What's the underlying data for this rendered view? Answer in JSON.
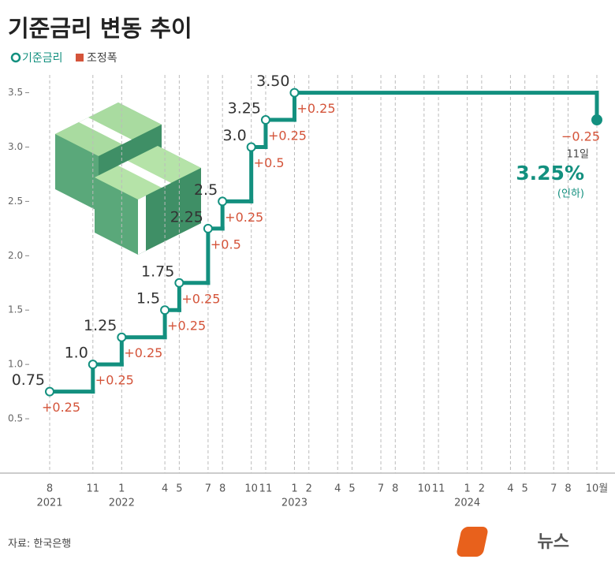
{
  "chart_data": {
    "type": "step",
    "title": "기준금리 변동 추이",
    "x": [
      "2021-08",
      "2021-11",
      "2022-01",
      "2022-04",
      "2022-05",
      "2022-07",
      "2022-08",
      "2022-10",
      "2022-11",
      "2023-01",
      "2024-10"
    ],
    "series": [
      {
        "name": "기준금리",
        "color": "#13907f",
        "values": [
          0.75,
          1.0,
          1.25,
          1.5,
          1.75,
          2.25,
          2.5,
          3.0,
          3.25,
          3.5,
          3.25
        ],
        "value_labels": [
          "0.75",
          "1.0",
          "1.25",
          "1.5",
          "1.75",
          "2.25",
          "2.5",
          "3.0",
          "3.25",
          "3.50",
          "3.25%"
        ]
      },
      {
        "name": "조정폭",
        "color": "#d4543a",
        "values": [
          0.25,
          0.25,
          0.25,
          0.25,
          0.25,
          0.5,
          0.25,
          0.5,
          0.25,
          0.25,
          -0.25
        ],
        "value_labels": [
          "+0.25",
          "+0.25",
          "+0.25",
          "+0.25",
          "+0.25",
          "+0.5",
          "+0.25",
          "+0.5",
          "+0.25",
          "+0.25",
          "−0.25"
        ]
      }
    ],
    "ylim": [
      0,
      3.7
    ],
    "yticks": [
      {
        "value": 0.5,
        "label": "0.5"
      },
      {
        "value": 1,
        "label": "1.0"
      },
      {
        "value": 1.5,
        "label": "1.5"
      },
      {
        "value": 2,
        "label": "2.0"
      },
      {
        "value": 2.5,
        "label": "2.5"
      },
      {
        "value": 3,
        "label": "3.0"
      },
      {
        "value": 3.5,
        "label": "3.5"
      }
    ],
    "xlim": [
      "2021-08",
      "2024-10"
    ],
    "xticks": [
      {
        "value": "2021-08",
        "label": "8"
      },
      {
        "value": "2021-11",
        "label": "11"
      },
      {
        "value": "2022-01",
        "label": "1"
      },
      {
        "value": "2022-04",
        "label": "4"
      },
      {
        "value": "2022-05",
        "label": "5"
      },
      {
        "value": "2022-07",
        "label": "7"
      },
      {
        "value": "2022-08",
        "label": "8"
      },
      {
        "value": "2022-10",
        "label": "10"
      },
      {
        "value": "2022-11",
        "label": "11"
      },
      {
        "value": "2023-01",
        "label": "1"
      },
      {
        "value": "2023-02",
        "label": "2"
      },
      {
        "value": "2023-04",
        "label": "4"
      },
      {
        "value": "2023-05",
        "label": "5"
      },
      {
        "value": "2023-07",
        "label": "7"
      },
      {
        "value": "2023-08",
        "label": "8"
      },
      {
        "value": "2023-10",
        "label": "10"
      },
      {
        "value": "2023-11",
        "label": "11"
      },
      {
        "value": "2024-01",
        "label": "1"
      },
      {
        "value": "2024-02",
        "label": "2"
      },
      {
        "value": "2024-04",
        "label": "4"
      },
      {
        "value": "2024-05",
        "label": "5"
      },
      {
        "value": "2024-07",
        "label": "7"
      },
      {
        "value": "2024-08",
        "label": "8"
      },
      {
        "value": "2024-10",
        "label": "10월"
      }
    ],
    "year_labels": [
      {
        "value": "2021-08",
        "label": "2021"
      },
      {
        "value": "2022-01",
        "label": "2022"
      },
      {
        "value": "2023-01",
        "label": "2023"
      },
      {
        "value": "2024-01",
        "label": "2024"
      }
    ],
    "annotations": [
      "11일",
      "(인하)"
    ],
    "source": "자료: 한국은행",
    "logo": [
      "뉴스",
      "1"
    ]
  }
}
